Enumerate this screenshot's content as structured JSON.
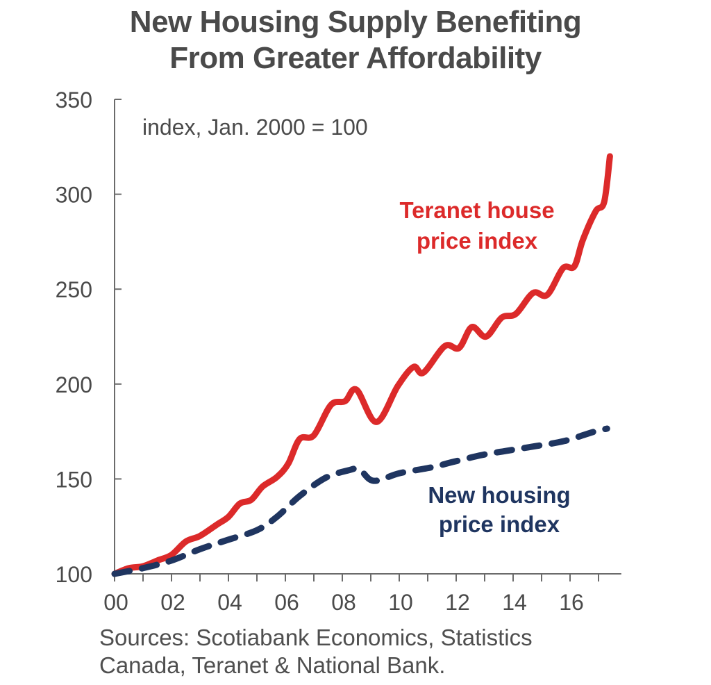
{
  "chart_data": {
    "type": "line",
    "title": "New Housing Supply Benefiting From Greater Affordability",
    "title_lines": [
      "New Housing Supply Benefiting",
      "From Greater Affordability"
    ],
    "subtitle": "index, Jan. 2000 = 100",
    "xlabel": "",
    "ylabel": "",
    "xlim": [
      2000,
      2017.8
    ],
    "ylim": [
      100,
      350
    ],
    "yticks": [
      100,
      150,
      200,
      250,
      300,
      350
    ],
    "ytick_labels": [
      "100",
      "150",
      "200",
      "250",
      "300",
      "350"
    ],
    "xticks": [
      2000,
      2002,
      2004,
      2006,
      2008,
      2010,
      2012,
      2014,
      2016
    ],
    "xtick_labels": [
      "00",
      "02",
      "04",
      "06",
      "08",
      "10",
      "12",
      "14",
      "16"
    ],
    "grid": false,
    "series": [
      {
        "name": "Teranet house price index",
        "label_lines": [
          "Teranet house",
          "price index"
        ],
        "color": "#dc2a2a",
        "style": "solid",
        "x": [
          2000.0,
          2000.5,
          2001.0,
          2001.5,
          2002.0,
          2002.5,
          2003.0,
          2003.6,
          2004.0,
          2004.4,
          2004.8,
          2005.2,
          2005.7,
          2006.1,
          2006.5,
          2007.0,
          2007.6,
          2008.1,
          2008.5,
          2009.2,
          2009.95,
          2010.5,
          2010.85,
          2011.6,
          2012.1,
          2012.55,
          2013.05,
          2013.6,
          2014.1,
          2014.7,
          2015.2,
          2015.75,
          2016.15,
          2016.45,
          2016.9,
          2017.2,
          2017.4
        ],
        "values": [
          100,
          103,
          104,
          107,
          110,
          117,
          120,
          126,
          130,
          137,
          139,
          146,
          151,
          158,
          171,
          173,
          189,
          191,
          197,
          180,
          199,
          209,
          206,
          220,
          219,
          230,
          225,
          235,
          237,
          248,
          247,
          261,
          262,
          276,
          291,
          296,
          320
        ]
      },
      {
        "name": "New housing price index",
        "label_lines": [
          "New housing",
          "price index"
        ],
        "color": "#1f3560",
        "style": "dashed",
        "x": [
          2000.0,
          2001.0,
          2002.0,
          2003.0,
          2004.0,
          2005.0,
          2005.7,
          2006.5,
          2007.4,
          2008.2,
          2008.6,
          2009.1,
          2010.0,
          2011.1,
          2011.9,
          2012.9,
          2013.85,
          2014.8,
          2015.8,
          2016.8,
          2017.3
        ],
        "values": [
          100,
          103,
          107,
          113,
          118,
          123,
          130,
          141,
          150.5,
          154.5,
          155,
          149,
          153,
          156,
          159,
          162.6,
          165,
          167.3,
          170,
          174.7,
          176.5
        ]
      }
    ],
    "legend": "inline-labels"
  },
  "footer": {
    "sources_lines": [
      "Sources: Scotiabank Economics, Statistics",
      "Canada, Teranet & National Bank."
    ]
  }
}
